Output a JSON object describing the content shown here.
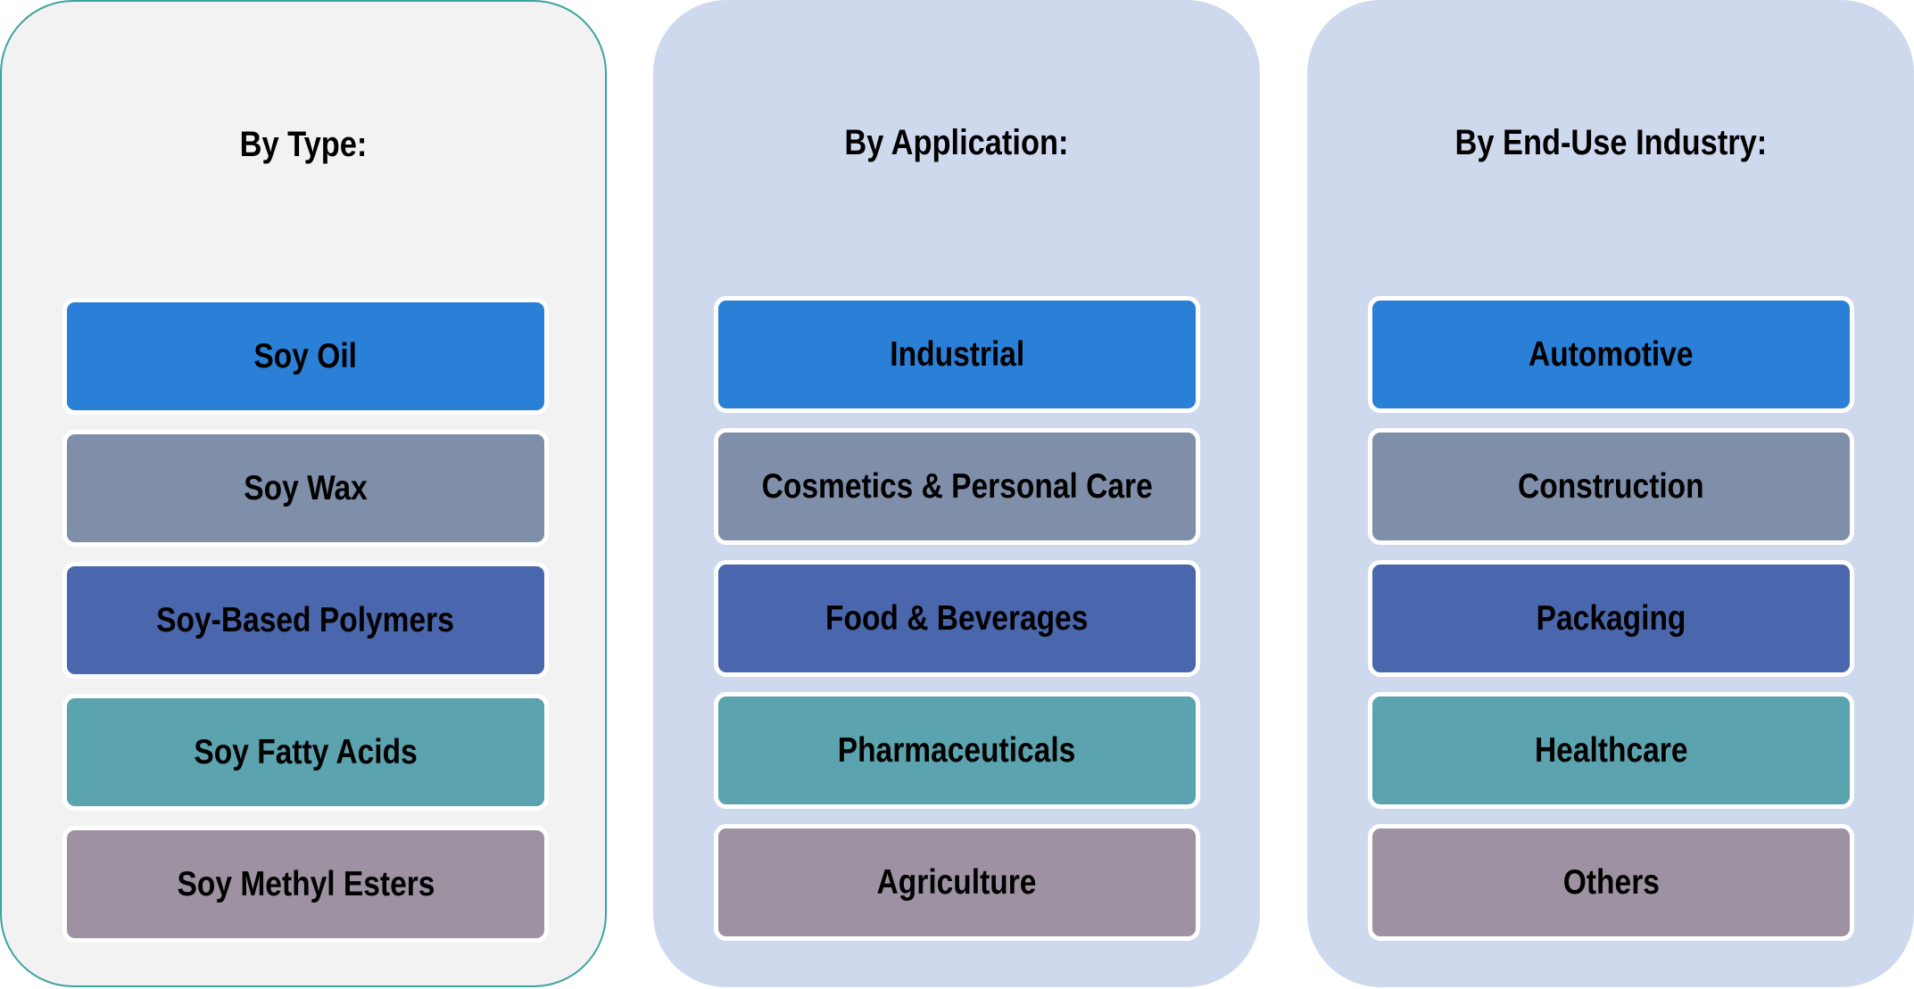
{
  "colors": [
    "#2a7fd6",
    "#7f8faa",
    "#4a67ad",
    "#5ba3ae",
    "#9e91a2"
  ],
  "panels": [
    {
      "title": "By Type:",
      "items": [
        "Soy Oil",
        "Soy Wax",
        "Soy-Based Polymers",
        "Soy Fatty Acids",
        "Soy Methyl Esters"
      ]
    },
    {
      "title": "By Application:",
      "items": [
        "Industrial",
        "Cosmetics & Personal Care",
        "Food & Beverages",
        "Pharmaceuticals",
        "Agriculture"
      ]
    },
    {
      "title": "By End-Use Industry:",
      "items": [
        "Automotive",
        "Construction",
        "Packaging",
        "Healthcare",
        "Others"
      ]
    }
  ]
}
